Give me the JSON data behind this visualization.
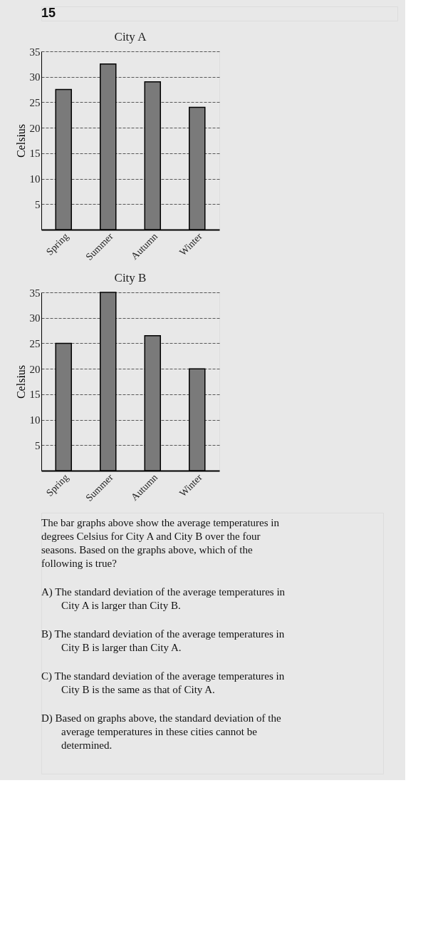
{
  "chart_data": [
    {
      "type": "bar",
      "title": "City A",
      "ylabel": "Celsius",
      "categories": [
        "Spring",
        "Summer",
        "Autumn",
        "Winter"
      ],
      "series": [
        {
          "color": "#7a7a7a",
          "values": [
            27.5,
            32.5,
            29,
            24
          ]
        }
      ],
      "ylim": [
        0,
        35
      ],
      "yticks": [
        5,
        10,
        15,
        20,
        25,
        30,
        35
      ],
      "grid": "y",
      "line_style": "dashed",
      "annotations": [
        "15"
      ]
    },
    {
      "type": "bar",
      "title": "City B",
      "ylabel": "Celsius",
      "categories": [
        "Spring",
        "Summer",
        "Autumn",
        "Winter"
      ],
      "series": [
        {
          "color": "#7a7a7a",
          "values": [
            25,
            35,
            26.5,
            20
          ]
        }
      ],
      "ylim": [
        0,
        35
      ],
      "yticks": [
        5,
        10,
        15,
        20,
        25,
        30,
        35
      ],
      "grid": "y",
      "line_style": "dashed",
      "annotations": [
        "The bar graphs above show the average temperatures in degrees Celsius for City A and City B over the four seasons. Based on the graphs above, which of the following is true?",
        "A) The standard deviation of the average temperatures in City A is larger than City B.",
        "B) The standard deviation of the average temperatures in City B is larger than City A.",
        "C) The standard deviation of the average temperatures in City B is the same as that of City A.",
        "D) Based on graphs above, the standard deviation of the average temperatures in these cities cannot be determined."
      ]
    }
  ]
}
